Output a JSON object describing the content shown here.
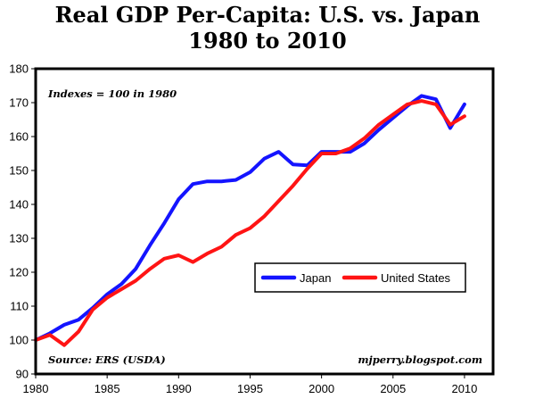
{
  "chart_data": {
    "type": "line",
    "title_line1": "Real GDP Per-Capita: U.S. vs. Japan",
    "title_line2": "1980 to 2010",
    "annotation_top": "Indexes = 100 in 1980",
    "annotation_source": "Source: ERS (USDA)",
    "annotation_credit": "mjperry.blogspot.com",
    "xlim": [
      1980,
      2012
    ],
    "ylim": [
      90,
      180
    ],
    "x_ticks": [
      1980,
      1985,
      1990,
      1995,
      2000,
      2005,
      2010
    ],
    "y_ticks": [
      90,
      100,
      110,
      120,
      130,
      140,
      150,
      160,
      170,
      180
    ],
    "legend_position": "center-right",
    "grid": false,
    "x": [
      1980,
      1981,
      1982,
      1983,
      1984,
      1985,
      1986,
      1987,
      1988,
      1989,
      1990,
      1991,
      1992,
      1993,
      1994,
      1995,
      1996,
      1997,
      1998,
      1999,
      2000,
      2001,
      2002,
      2003,
      2004,
      2005,
      2006,
      2007,
      2008,
      2009,
      2010
    ],
    "series": [
      {
        "name": "Japan",
        "color": "#1414ff",
        "values": [
          100,
          102,
          104.5,
          106,
          109.5,
          113.5,
          116.5,
          121,
          128,
          134.5,
          141.5,
          146,
          146.8,
          146.8,
          147.2,
          149.5,
          153.5,
          155.5,
          151.8,
          151.5,
          155.5,
          155.5,
          155.5,
          158,
          162,
          165.5,
          169,
          172,
          171,
          162.5,
          169.5
        ]
      },
      {
        "name": "United States",
        "color": "#ff1414",
        "values": [
          100,
          101.5,
          98.5,
          102.5,
          109,
          112.5,
          115,
          117.5,
          121,
          124,
          125,
          123,
          125.5,
          127.5,
          131,
          133,
          136.5,
          141,
          145.5,
          150.5,
          155,
          155,
          156.5,
          159.5,
          163.5,
          166.5,
          169.5,
          170.5,
          169.5,
          163.5,
          166
        ]
      }
    ]
  }
}
